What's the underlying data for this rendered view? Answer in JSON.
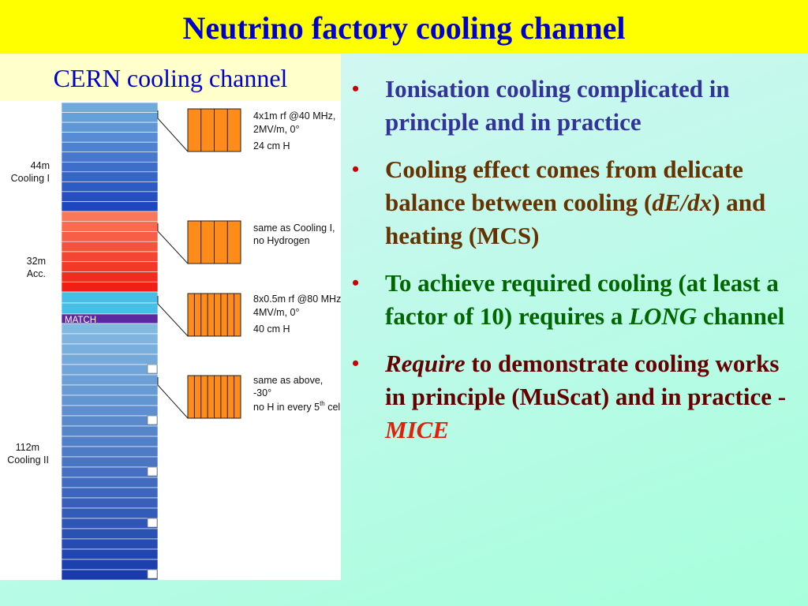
{
  "title": "Neutrino factory cooling channel",
  "subtitle": "CERN cooling channel",
  "diagram": {
    "sections": [
      {
        "length": "44m",
        "name": "Cooling I"
      },
      {
        "length": "32m",
        "name": "Acc."
      },
      {
        "length": "112m",
        "name": "Cooling II"
      }
    ],
    "match": "MATCH",
    "callouts": [
      [
        "4x1m rf @40 MHz,",
        "2MV/m, 0°",
        "24 cm H"
      ],
      [
        "same as Cooling I,",
        "no Hydrogen"
      ],
      [
        "8x0.5m rf @80 MHz,",
        "4MV/m, 0°",
        "40 cm H"
      ],
      [
        "same as above,",
        "-30°",
        "no H in every 5",
        "th",
        " cell"
      ]
    ]
  },
  "bullets": [
    [
      "Ionisation cooling complicated in principle and in practice"
    ],
    [
      "Cooling effect comes from delicate balance between cooling (",
      "dE/dx",
      ") and heating (MCS)"
    ],
    [
      "To achieve required cooling (at least a factor of 10) requires a ",
      "LONG",
      " channel"
    ],
    [
      "Require",
      " to demonstrate cooling works in principle (MuScat) and in practice - ",
      "MICE"
    ]
  ]
}
